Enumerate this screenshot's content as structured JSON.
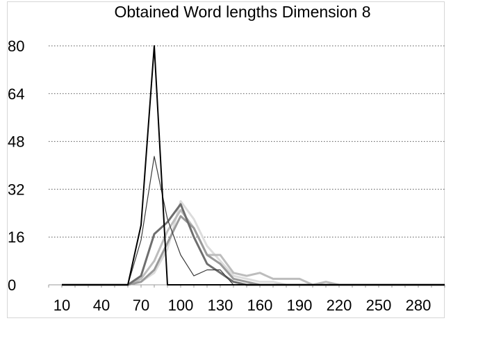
{
  "chart_data": {
    "type": "line",
    "title": "Obtained Word lengths Dimension 8",
    "xlabel": "",
    "ylabel": "",
    "x_ticks": [
      "10",
      "40",
      "70",
      "100",
      "130",
      "160",
      "190",
      "220",
      "250",
      "280"
    ],
    "y_ticks": [
      "80",
      "64",
      "48",
      "32",
      "16",
      "0"
    ],
    "xlim": [
      0,
      300
    ],
    "ylim": [
      0,
      80
    ],
    "grid": true,
    "legend": "none",
    "x": [
      10,
      20,
      30,
      40,
      50,
      60,
      70,
      80,
      90,
      100,
      110,
      120,
      130,
      140,
      150,
      160,
      170,
      180,
      190,
      200,
      210,
      220,
      230,
      240,
      250,
      260,
      270,
      280,
      290,
      300
    ],
    "series": [
      {
        "color": "#000000",
        "values": [
          0,
          0,
          0,
          0,
          0,
          0,
          20,
          80,
          0,
          0,
          0,
          0,
          0,
          0,
          0,
          0,
          0,
          0,
          0,
          0,
          0,
          0,
          0,
          0,
          0,
          0,
          0,
          0,
          0,
          0
        ]
      },
      {
        "color": "#3a3a3a",
        "values": [
          0,
          0,
          0,
          0,
          0,
          0,
          15,
          43,
          22,
          10,
          3,
          5,
          5,
          0,
          0,
          0,
          0,
          0,
          0,
          0,
          0,
          0,
          0,
          0,
          0,
          0,
          0,
          0,
          0,
          0
        ]
      },
      {
        "color": "#6e6e6e",
        "values": [
          0,
          0,
          0,
          0,
          0,
          0,
          3,
          17,
          21,
          27,
          16,
          7,
          4,
          1,
          0,
          0,
          0,
          0,
          0,
          0,
          0,
          0,
          0,
          0,
          0,
          0,
          0,
          0,
          0,
          0
        ]
      },
      {
        "color": "#9a9a9a",
        "values": [
          0,
          0,
          0,
          0,
          0,
          0,
          1,
          5,
          14,
          23,
          19,
          10,
          7,
          2,
          1,
          0,
          0,
          0,
          0,
          0,
          0,
          0,
          0,
          0,
          0,
          0,
          0,
          0,
          0,
          0
        ]
      },
      {
        "color": "#bdbdbd",
        "values": [
          0,
          0,
          0,
          0,
          0,
          0,
          2,
          8,
          18,
          25,
          19,
          10,
          10,
          4,
          3,
          4,
          2,
          2,
          2,
          0,
          1,
          0,
          0,
          0,
          0,
          0,
          0,
          0,
          0,
          0
        ]
      },
      {
        "color": "#dcdcdc",
        "values": [
          0,
          0,
          0,
          0,
          0,
          0,
          1,
          4,
          12,
          28,
          22,
          13,
          8,
          3,
          2,
          1,
          1,
          0,
          0,
          0,
          0,
          0,
          0,
          0,
          0,
          0,
          0,
          0,
          0,
          0
        ]
      }
    ]
  }
}
